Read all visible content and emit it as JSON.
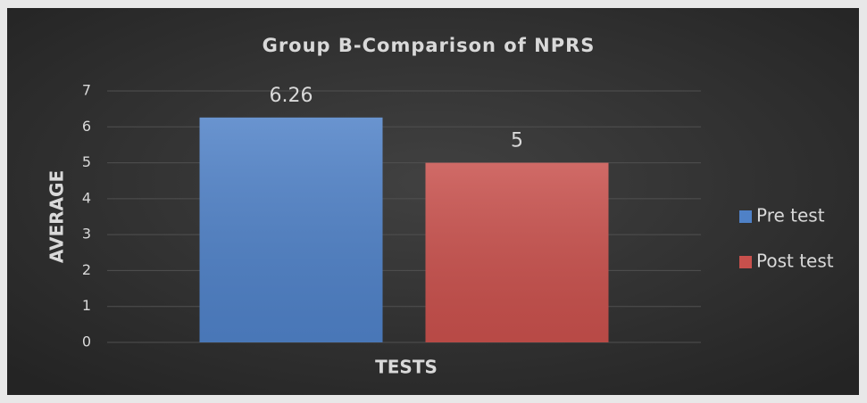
{
  "chart_data": {
    "type": "bar",
    "title": "Group B-Comparison of NPRS",
    "x_label": "TESTS",
    "y_label": "AVERAGE",
    "categories": [
      null
    ],
    "series": [
      {
        "name": "Pre test",
        "color": "#4f81c7",
        "values": [
          6.26
        ]
      },
      {
        "name": "Post test",
        "color": "#c8504c",
        "values": [
          5
        ]
      }
    ],
    "ylim": [
      0,
      7
    ],
    "yticks": [
      0,
      1,
      2,
      3,
      4,
      5,
      6,
      7
    ],
    "grid": true,
    "legend": "right",
    "data_labels": true
  }
}
